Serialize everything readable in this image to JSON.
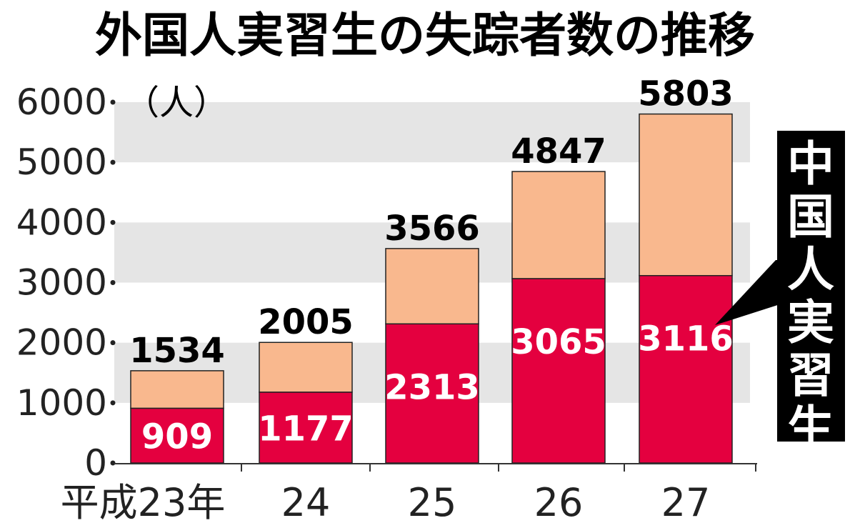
{
  "chart_data": {
    "type": "bar",
    "stacked": true,
    "title": "外国人実習生の失踪者数の推移",
    "unit_label": "（人）",
    "categories": [
      "平成23年",
      "24",
      "25",
      "26",
      "27"
    ],
    "totals": [
      1534,
      2005,
      3566,
      4847,
      5803
    ],
    "series": [
      {
        "name": "中国人実習生",
        "values": [
          909,
          1177,
          2313,
          3065,
          3116
        ],
        "color": "#e4003f"
      },
      {
        "values": [
          625,
          828,
          1253,
          1782,
          2687
        ],
        "color": "#f9b88e"
      }
    ],
    "ylim": [
      0,
      6000
    ],
    "yticks": [
      "0",
      "1000",
      "2000",
      "3000",
      "4000",
      "5000",
      "6000"
    ],
    "band_color": "#e5e5e5",
    "callout_bg": "#000000",
    "callout_text_color": "#ffffff"
  }
}
